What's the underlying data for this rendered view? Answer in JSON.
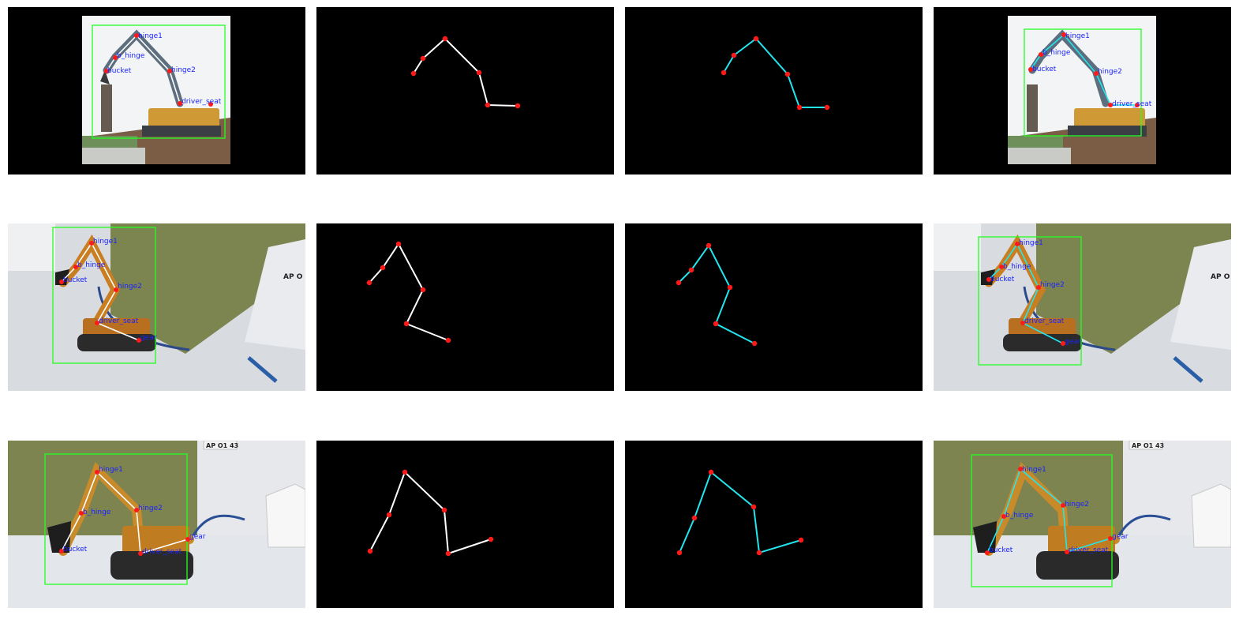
{
  "colors": {
    "bbox": "#22ff22",
    "gt_skeleton": "#ffffff",
    "pred_skeleton": "#22e6ee",
    "keypoint": "#ff1a1a",
    "label": "#1a23ff",
    "panel_bg": "#000000"
  },
  "rows": [
    {
      "scene": "outdoor",
      "labels": {
        "hinge1": "hinge1",
        "b_hinge": "b_hinge",
        "bucket": "bucket",
        "hinge2": "hinge2",
        "driver_seat": "driver_seat"
      },
      "pred_labels": {
        "hinge1": "hinge1",
        "b_hinge": "b_hinge",
        "bucket": "bucket",
        "hinge2": "hinge2",
        "driver_seat": "driver_seat"
      }
    },
    {
      "scene": "indoor-wall",
      "wall_sign": "AP O",
      "labels": {
        "hinge1": "hinge1",
        "b_hinge": "b_hinge",
        "bucket": "bucket",
        "hinge2": "hinge2",
        "driver_seat": "driver_seat",
        "gear": "gear"
      },
      "pred_labels": {
        "hinge1": "hinge1",
        "b_hinge": "b_hinge",
        "bucket": "bucket",
        "hinge2": "hinge2",
        "driver_seat": "driver_seat",
        "gear": "gear"
      }
    },
    {
      "scene": "indoor-box",
      "wall_sign": "AP O1 43",
      "labels": {
        "hinge1": "hinge1",
        "b_hinge": "b_hinge",
        "bucket": "bucket",
        "hinge2": "hinge2",
        "driver_seat": "driver_seat",
        "gear": "gear"
      },
      "pred_labels": {
        "hinge1": "hinge1",
        "b_hinge": "b_hinge",
        "bucket": "bucket",
        "hinge2": "hinge2",
        "driver_seat": "driver_seat",
        "gear": "gear"
      }
    }
  ]
}
